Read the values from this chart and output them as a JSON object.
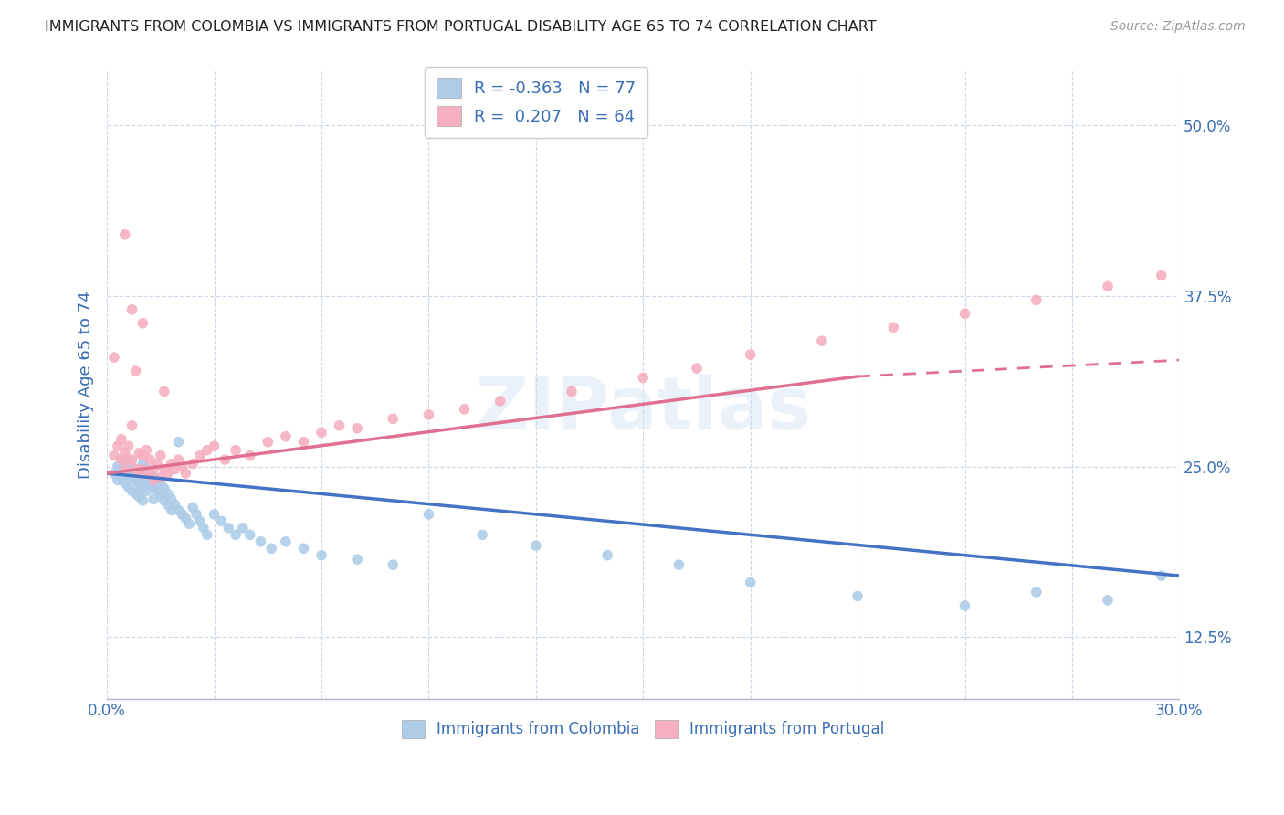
{
  "title": "IMMIGRANTS FROM COLOMBIA VS IMMIGRANTS FROM PORTUGAL DISABILITY AGE 65 TO 74 CORRELATION CHART",
  "source": "Source: ZipAtlas.com",
  "ylabel": "Disability Age 65 to 74",
  "xlim": [
    0.0,
    0.3
  ],
  "ylim": [
    0.08,
    0.54
  ],
  "xticks": [
    0.0,
    0.03,
    0.06,
    0.09,
    0.12,
    0.15,
    0.18,
    0.21,
    0.24,
    0.27,
    0.3
  ],
  "xticklabels": [
    "0.0%",
    "",
    "",
    "",
    "",
    "",
    "",
    "",
    "",
    "",
    "30.0%"
  ],
  "yticks": [
    0.125,
    0.25,
    0.375,
    0.5
  ],
  "yticklabels": [
    "12.5%",
    "25.0%",
    "37.5%",
    "50.0%"
  ],
  "colombia_color": "#aecce8",
  "portugal_color": "#f5afc0",
  "colombia_R": -0.363,
  "colombia_N": 77,
  "portugal_R": 0.207,
  "portugal_N": 64,
  "colombia_line_color": "#4472c4",
  "portugal_line_color": "#e07090",
  "watermark": "ZIPatlas",
  "background_color": "#ffffff",
  "grid_color": "#ccd8e8",
  "colombia_points_x": [
    0.002,
    0.003,
    0.003,
    0.004,
    0.004,
    0.005,
    0.005,
    0.005,
    0.006,
    0.006,
    0.006,
    0.007,
    0.007,
    0.007,
    0.008,
    0.008,
    0.008,
    0.009,
    0.009,
    0.009,
    0.01,
    0.01,
    0.01,
    0.01,
    0.011,
    0.011,
    0.011,
    0.012,
    0.012,
    0.013,
    0.013,
    0.013,
    0.014,
    0.014,
    0.015,
    0.015,
    0.016,
    0.016,
    0.017,
    0.017,
    0.018,
    0.018,
    0.019,
    0.02,
    0.02,
    0.021,
    0.022,
    0.023,
    0.024,
    0.025,
    0.026,
    0.027,
    0.028,
    0.03,
    0.032,
    0.034,
    0.036,
    0.038,
    0.04,
    0.043,
    0.046,
    0.05,
    0.055,
    0.06,
    0.07,
    0.08,
    0.09,
    0.105,
    0.12,
    0.14,
    0.16,
    0.18,
    0.21,
    0.24,
    0.26,
    0.28,
    0.295
  ],
  "colombia_points_y": [
    0.245,
    0.25,
    0.24,
    0.248,
    0.242,
    0.255,
    0.247,
    0.238,
    0.252,
    0.244,
    0.235,
    0.25,
    0.242,
    0.232,
    0.248,
    0.24,
    0.23,
    0.245,
    0.237,
    0.228,
    0.252,
    0.243,
    0.235,
    0.225,
    0.248,
    0.24,
    0.232,
    0.245,
    0.237,
    0.242,
    0.234,
    0.226,
    0.24,
    0.232,
    0.237,
    0.229,
    0.234,
    0.225,
    0.23,
    0.222,
    0.226,
    0.218,
    0.222,
    0.268,
    0.218,
    0.215,
    0.212,
    0.208,
    0.22,
    0.215,
    0.21,
    0.205,
    0.2,
    0.215,
    0.21,
    0.205,
    0.2,
    0.205,
    0.2,
    0.195,
    0.19,
    0.195,
    0.19,
    0.185,
    0.182,
    0.178,
    0.215,
    0.2,
    0.192,
    0.185,
    0.178,
    0.165,
    0.155,
    0.148,
    0.158,
    0.152,
    0.17
  ],
  "portugal_points_x": [
    0.002,
    0.002,
    0.003,
    0.004,
    0.004,
    0.005,
    0.005,
    0.006,
    0.006,
    0.007,
    0.007,
    0.008,
    0.008,
    0.009,
    0.009,
    0.01,
    0.01,
    0.011,
    0.011,
    0.012,
    0.012,
    0.013,
    0.013,
    0.014,
    0.015,
    0.015,
    0.016,
    0.017,
    0.018,
    0.019,
    0.02,
    0.021,
    0.022,
    0.024,
    0.026,
    0.028,
    0.03,
    0.033,
    0.036,
    0.04,
    0.045,
    0.05,
    0.055,
    0.06,
    0.065,
    0.07,
    0.08,
    0.09,
    0.1,
    0.11,
    0.13,
    0.15,
    0.165,
    0.18,
    0.2,
    0.22,
    0.24,
    0.26,
    0.28,
    0.295,
    0.005,
    0.007,
    0.01,
    0.016
  ],
  "portugal_points_y": [
    0.258,
    0.33,
    0.265,
    0.27,
    0.255,
    0.26,
    0.248,
    0.255,
    0.265,
    0.28,
    0.255,
    0.32,
    0.248,
    0.26,
    0.245,
    0.258,
    0.248,
    0.262,
    0.245,
    0.255,
    0.245,
    0.248,
    0.24,
    0.252,
    0.258,
    0.242,
    0.248,
    0.245,
    0.252,
    0.248,
    0.255,
    0.25,
    0.245,
    0.252,
    0.258,
    0.262,
    0.265,
    0.255,
    0.262,
    0.258,
    0.268,
    0.272,
    0.268,
    0.275,
    0.28,
    0.278,
    0.285,
    0.288,
    0.292,
    0.298,
    0.305,
    0.315,
    0.322,
    0.332,
    0.342,
    0.352,
    0.362,
    0.372,
    0.382,
    0.39,
    0.42,
    0.365,
    0.355,
    0.305
  ]
}
